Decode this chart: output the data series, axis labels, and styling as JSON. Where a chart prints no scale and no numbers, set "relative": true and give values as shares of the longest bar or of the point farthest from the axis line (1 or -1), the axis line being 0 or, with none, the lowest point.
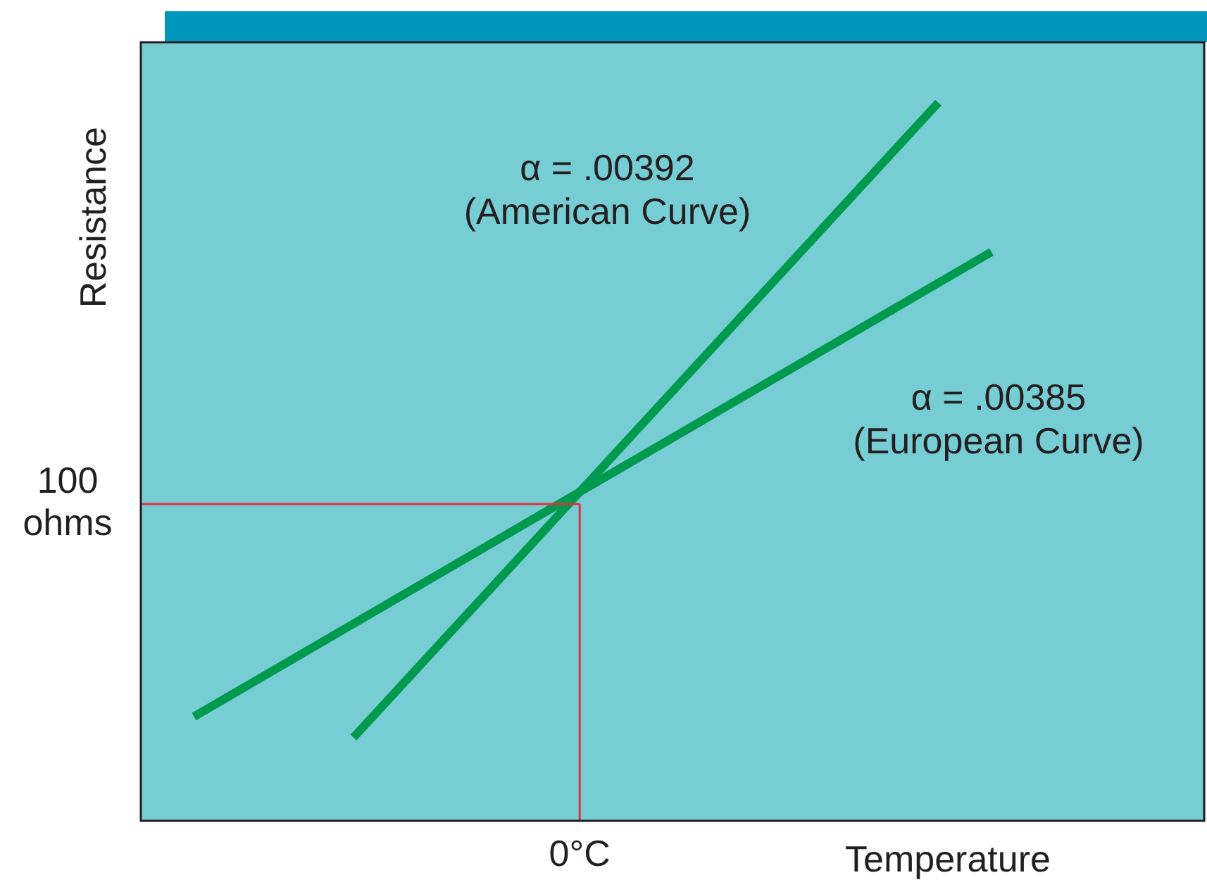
{
  "chart_data": {
    "type": "line",
    "relative": true,
    "xlabel": "Temperature",
    "ylabel": "Resistance",
    "legend": false,
    "grid": false,
    "marker": "none",
    "line_style": "solid",
    "annotations": [
      "0°C"
    ],
    "categories": [
      null,
      null,
      null,
      null,
      null,
      null,
      null,
      null,
      null,
      null,
      null,
      null,
      null,
      null,
      null,
      null,
      null,
      null,
      null,
      null,
      null
    ],
    "series": [
      {
        "name": "α = .00392 (American Curve)",
        "color": "#009a4e",
        "values": [
          null,
          null,
          null,
          null,
          0.116,
          null,
          null,
          null,
          null,
          null,
          null,
          null,
          null,
          null,
          null,
          1,
          null,
          null,
          null,
          null,
          null
        ]
      },
      {
        "name": "α = .00385 (European Curve)",
        "color": "#009a4e",
        "values": [
          null,
          0.145,
          null,
          null,
          null,
          null,
          null,
          null,
          null,
          null,
          null,
          null,
          null,
          null,
          null,
          null,
          0.792,
          null,
          null,
          null,
          null
        ]
      }
    ],
    "ref_lines": [
      {
        "axis": "y",
        "value": 0.441,
        "label": "100 ohms",
        "color": "#e0303a"
      }
    ]
  }
}
